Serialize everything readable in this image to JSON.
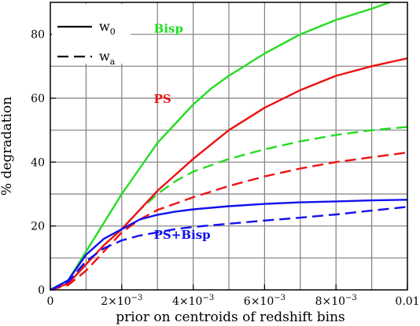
{
  "chart_data": {
    "type": "line",
    "xlabel": "prior on centroids of redshift bins",
    "ylabel": "% degradation",
    "xlim": [
      0,
      0.01
    ],
    "ylim": [
      0,
      90
    ],
    "grid": true,
    "x_ticks": [
      {
        "value": 0,
        "base": "0",
        "exp": ""
      },
      {
        "value": 0.002,
        "base": "2×10",
        "exp": "−3"
      },
      {
        "value": 0.004,
        "base": "4×10",
        "exp": "−3"
      },
      {
        "value": 0.006,
        "base": "6×10",
        "exp": "−3"
      },
      {
        "value": 0.008,
        "base": "8×10",
        "exp": "−3"
      },
      {
        "value": 0.01,
        "base": "0.01",
        "exp": ""
      }
    ],
    "y_ticks": [
      0,
      20,
      40,
      60,
      80
    ],
    "legend": {
      "placement": "top-left",
      "entries": [
        {
          "style": "solid",
          "base": "w",
          "sub": "0"
        },
        {
          "style": "dashed",
          "base": "w",
          "sub": "a"
        }
      ]
    },
    "groups": [
      {
        "label": "Bisp",
        "color": "#22dd22"
      },
      {
        "label": "PS",
        "color": "#ee1111"
      },
      {
        "label": "PS+Bisp",
        "color": "#1111ee"
      }
    ],
    "series": [
      {
        "group": "Bisp",
        "param": "w0",
        "style": "solid",
        "color": "#22dd22",
        "x": [
          0,
          0.0005,
          0.001,
          0.0015,
          0.002,
          0.0025,
          0.003,
          0.0035,
          0.004,
          0.0045,
          0.005,
          0.006,
          0.007,
          0.008,
          0.009,
          0.0095
        ],
        "y": [
          0,
          3,
          12,
          21,
          30,
          38,
          46,
          52,
          58,
          63,
          67,
          74,
          80,
          84.5,
          88,
          90
        ]
      },
      {
        "group": "Bisp",
        "param": "wa",
        "style": "dashed",
        "color": "#22dd22",
        "x": [
          0,
          0.0005,
          0.001,
          0.0015,
          0.002,
          0.0025,
          0.003,
          0.0035,
          0.004,
          0.005,
          0.006,
          0.007,
          0.008,
          0.009,
          0.01
        ],
        "y": [
          0,
          2,
          8,
          14,
          19,
          25,
          30,
          34,
          37,
          41,
          44,
          46.5,
          48.5,
          50,
          51
        ]
      },
      {
        "group": "PS",
        "param": "w0",
        "style": "solid",
        "color": "#ee1111",
        "x": [
          0,
          0.0005,
          0.001,
          0.0015,
          0.002,
          0.0025,
          0.003,
          0.0035,
          0.004,
          0.005,
          0.006,
          0.007,
          0.008,
          0.009,
          0.01
        ],
        "y": [
          0,
          2,
          8,
          14,
          19,
          25,
          31,
          36,
          41,
          50,
          57,
          62.5,
          67,
          70,
          72.5
        ]
      },
      {
        "group": "PS",
        "param": "wa",
        "style": "dashed",
        "color": "#ee1111",
        "x": [
          0,
          0.0005,
          0.001,
          0.0015,
          0.002,
          0.0025,
          0.003,
          0.0035,
          0.004,
          0.005,
          0.006,
          0.007,
          0.008,
          0.009,
          0.01
        ],
        "y": [
          0,
          1.5,
          6,
          12,
          18,
          22,
          25,
          27,
          29,
          32.5,
          35.5,
          38,
          40,
          41.5,
          43
        ]
      },
      {
        "group": "PS+Bisp",
        "param": "w0",
        "style": "solid",
        "color": "#1111ee",
        "x": [
          0,
          0.0005,
          0.001,
          0.0015,
          0.002,
          0.0025,
          0.003,
          0.0035,
          0.004,
          0.005,
          0.006,
          0.007,
          0.008,
          0.009,
          0.01
        ],
        "y": [
          0,
          3,
          11,
          16,
          19,
          22,
          23.5,
          24.5,
          25.2,
          26.2,
          26.9,
          27.4,
          27.7,
          28,
          28.2
        ]
      },
      {
        "group": "PS+Bisp",
        "param": "wa",
        "style": "dashed",
        "color": "#1111ee",
        "x": [
          0,
          0.0005,
          0.001,
          0.0015,
          0.002,
          0.0025,
          0.003,
          0.0035,
          0.004,
          0.005,
          0.006,
          0.007,
          0.008,
          0.009,
          0.01
        ],
        "y": [
          0,
          2.5,
          9,
          13,
          15.5,
          17,
          18,
          19,
          19.7,
          20.7,
          21.7,
          22.6,
          23.6,
          24.8,
          26
        ]
      }
    ]
  }
}
